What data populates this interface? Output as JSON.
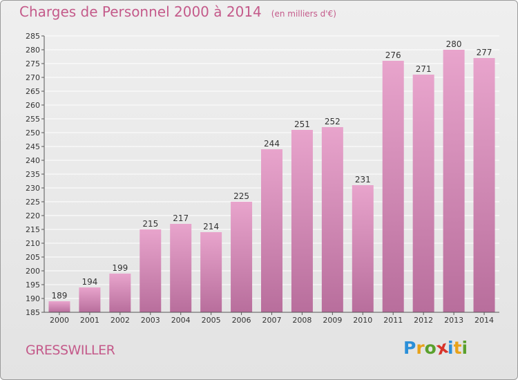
{
  "header": {
    "title": "Charges de Personnel 2000 à 2014",
    "subtitle": "(en milliers d'€)"
  },
  "footer": {
    "commune": "GRESSWILLER",
    "logo_letters": [
      "P",
      "r",
      "o",
      "x",
      "i",
      "t",
      "i"
    ],
    "logo_colors": [
      "#2b8fd8",
      "#e8a21a",
      "#5aa02c",
      "#d8342b",
      "#2b8fd8",
      "#e8a21a",
      "#5aa02c"
    ]
  },
  "colors": {
    "bar_top": "#e8a4cc",
    "bar_bottom": "#b86e9c",
    "grid": "#ffffff",
    "text": "#333333",
    "accent": "#c45a8a"
  },
  "chart_data": {
    "type": "bar",
    "title": "Charges de Personnel 2000 à 2014",
    "subtitle": "(en milliers d'€)",
    "categories": [
      "2000",
      "2001",
      "2002",
      "2003",
      "2004",
      "2005",
      "2006",
      "2007",
      "2008",
      "2009",
      "2010",
      "2011",
      "2012",
      "2013",
      "2014"
    ],
    "values": [
      189,
      194,
      199,
      215,
      217,
      214,
      225,
      244,
      251,
      252,
      231,
      276,
      271,
      280,
      277
    ],
    "ylim": [
      185,
      285
    ],
    "yticks": [
      185,
      190,
      195,
      200,
      205,
      210,
      215,
      220,
      225,
      230,
      235,
      240,
      245,
      250,
      255,
      260,
      265,
      270,
      275,
      280,
      285
    ],
    "grid": true,
    "data_labels": true
  }
}
